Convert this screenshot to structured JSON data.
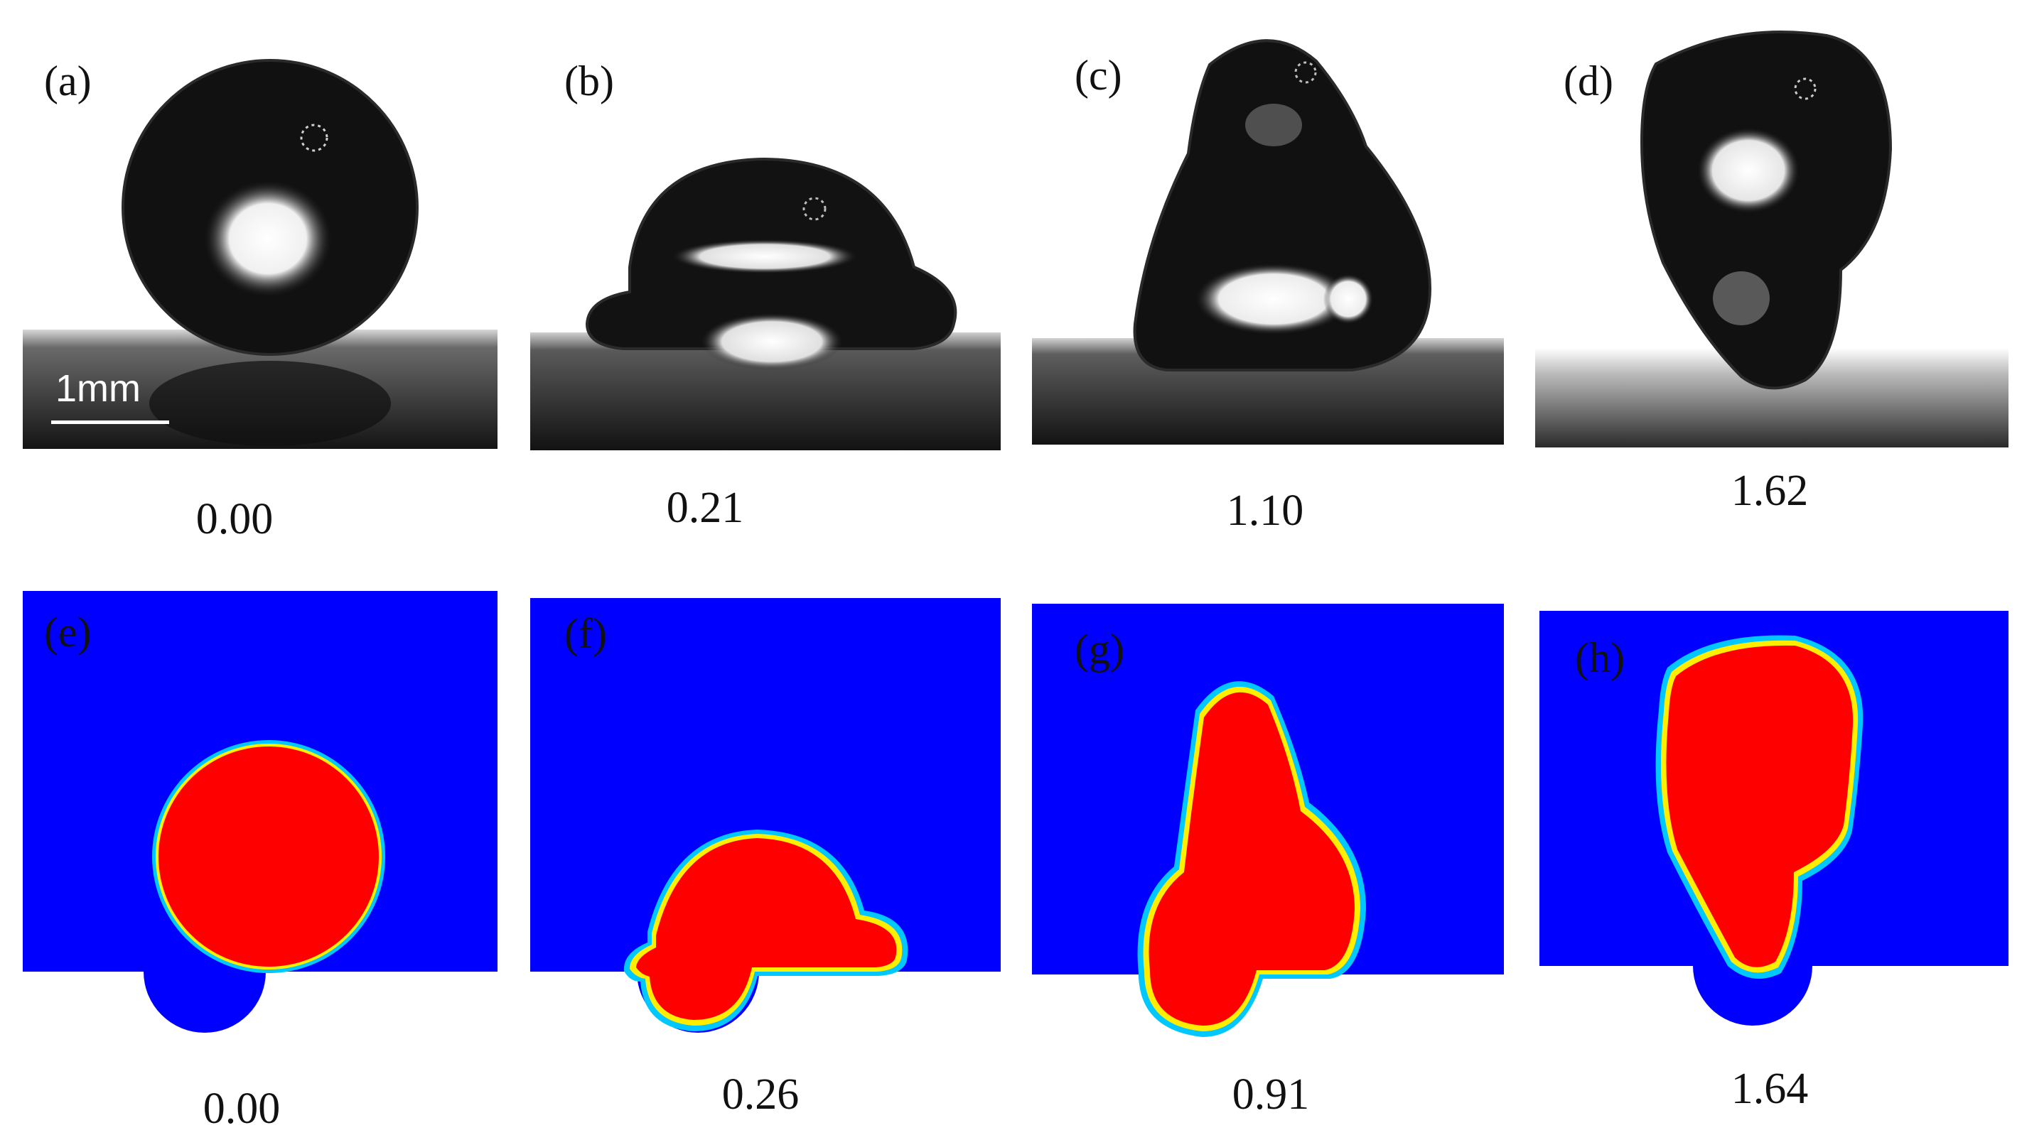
{
  "figure": {
    "experiment_row": {
      "panels": [
        {
          "label": "(a)",
          "time": "0.00"
        },
        {
          "label": "(b)",
          "time": "0.21"
        },
        {
          "label": "(c)",
          "time": "1.10"
        },
        {
          "label": "(d)",
          "time": "1.62"
        }
      ]
    },
    "simulation_row": {
      "panels": [
        {
          "label": "(e)",
          "time": "0.00"
        },
        {
          "label": "(f)",
          "time": "0.26"
        },
        {
          "label": "(g)",
          "time": "0.91"
        },
        {
          "label": "(h)",
          "time": "1.64"
        }
      ]
    },
    "scale_bar": {
      "text": "1mm"
    },
    "colors": {
      "gas_phase": "#0000ff",
      "liquid_phase": "#ff0000",
      "interface_inner": "#ffee00",
      "interface_outer": "#00c8ff",
      "photo_background": "#0a0a0a"
    }
  }
}
